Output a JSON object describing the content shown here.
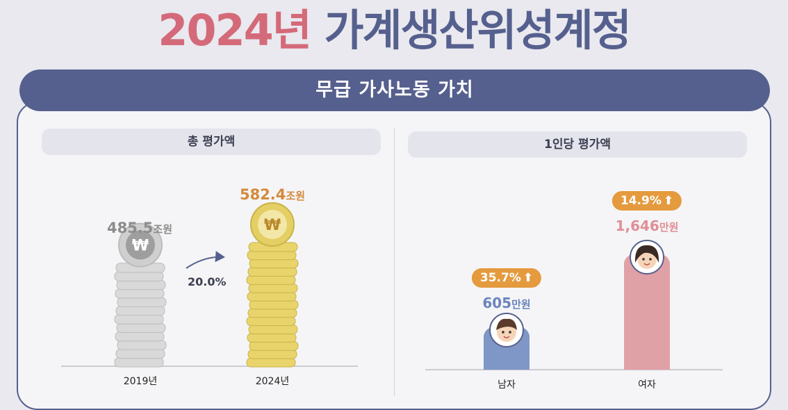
{
  "header": {
    "title_year": "2024년",
    "title_rest": "가계생산위성계정"
  },
  "banner": {
    "label": "무급 가사노동 가치"
  },
  "left": {
    "heading": "총 평가액",
    "growth_label": "20.0%"
  },
  "right": {
    "heading": "1인당 평가액"
  },
  "colors": {
    "title_accent": "#d46a79",
    "navy": "#56608e",
    "orange": "#e49a3d",
    "male_bar": "#7f97c6",
    "female_bar": "#e0a1a6",
    "gold": "#e8d46a",
    "silver": "#d6d6d6"
  },
  "icons": {
    "coin_symbol": "₩",
    "badge_arrow": "up-arrow-icon"
  },
  "chart_data": [
    {
      "type": "bar",
      "title": "총 평가액",
      "categories": [
        "2019년",
        "2024년"
      ],
      "values": [
        485.5,
        582.4
      ],
      "value_labels": [
        "485.5",
        "582.4"
      ],
      "unit": "조원",
      "growth": "20.0%"
    },
    {
      "type": "bar",
      "title": "1인당 평가액",
      "categories": [
        "남자",
        "여자"
      ],
      "values": [
        605,
        1646
      ],
      "value_labels": [
        "605",
        "1,646"
      ],
      "unit": "만원",
      "badges": [
        "35.7%",
        "14.9%"
      ]
    }
  ]
}
